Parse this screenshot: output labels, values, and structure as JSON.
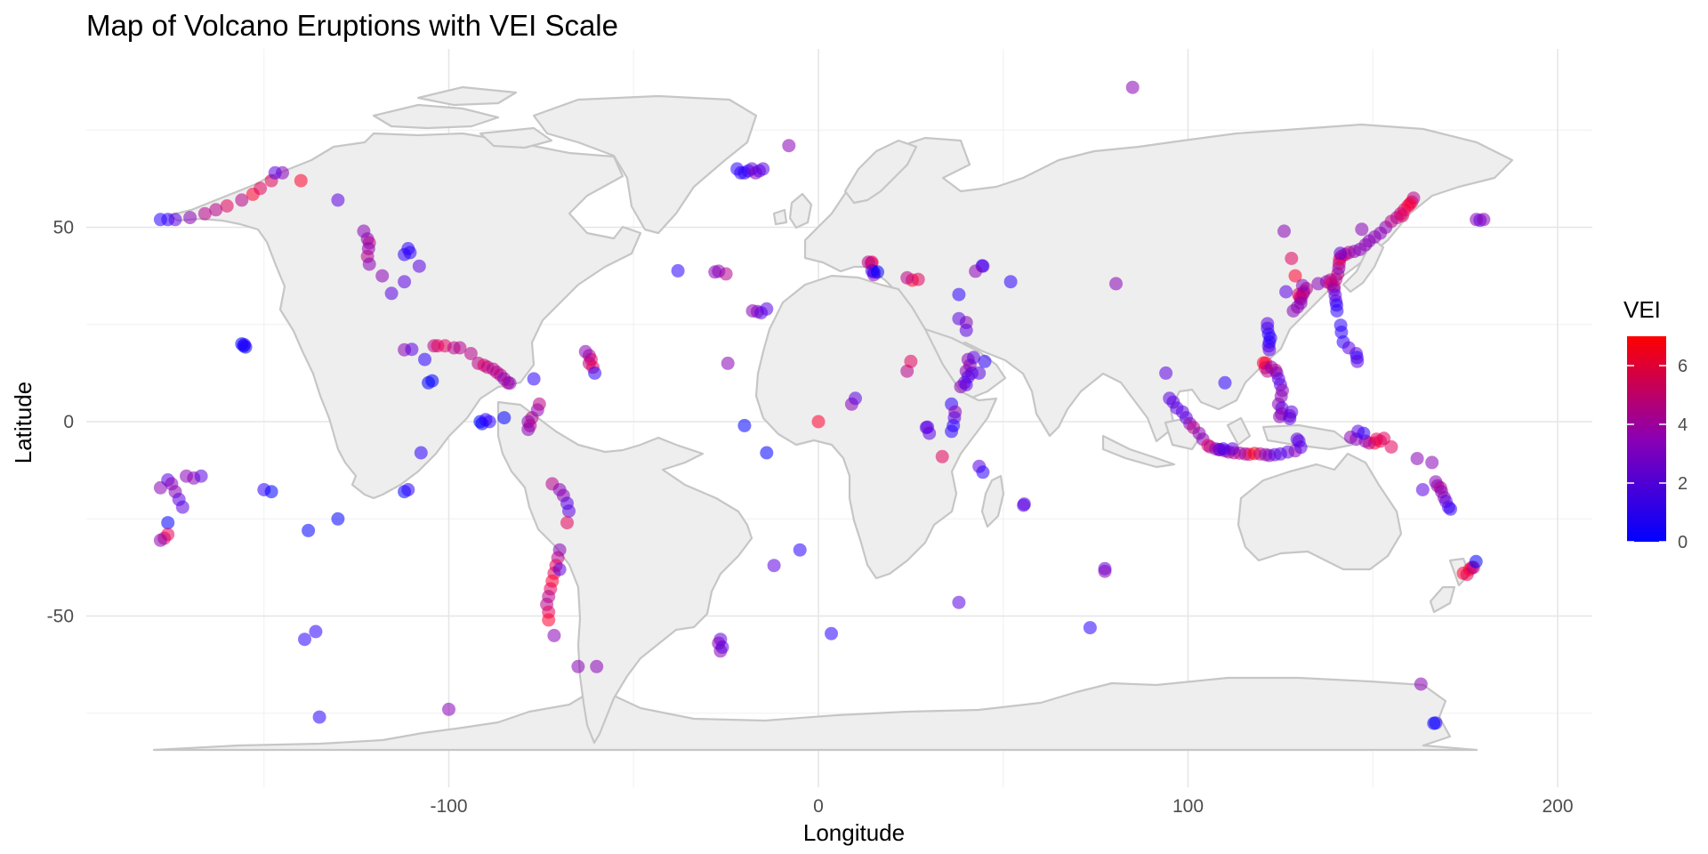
{
  "chart_data": {
    "type": "scatter",
    "title": "Map of Volcano Eruptions with VEI Scale",
    "xlabel": "Longitude",
    "ylabel": "Latitude",
    "xlim": [
      -180,
      205
    ],
    "ylim": [
      -92,
      92
    ],
    "x_ticks": [
      -100,
      0,
      100,
      200
    ],
    "y_ticks": [
      -50,
      0,
      50
    ],
    "grid": true,
    "legend": {
      "title": "VEI",
      "placement": "right",
      "range": [
        0,
        7
      ],
      "ticks": [
        0,
        2,
        4,
        6
      ],
      "color_low": "#0000ff",
      "color_high": "#ff0000"
    },
    "colors": {
      "land_fill": "#eeeeee",
      "land_border": "#c6c6c6",
      "grid": "#e6e6e6"
    },
    "points_lon_lat_vei": [
      [
        -178,
        52,
        1
      ],
      [
        -176,
        52,
        1
      ],
      [
        -174,
        52,
        2
      ],
      [
        -170,
        52.5,
        3
      ],
      [
        -166,
        53.5,
        4
      ],
      [
        -163,
        54.5,
        4
      ],
      [
        -160,
        55.5,
        5
      ],
      [
        -156,
        57,
        4
      ],
      [
        -153,
        58.5,
        6
      ],
      [
        -151,
        60,
        5
      ],
      [
        -148,
        62,
        5
      ],
      [
        -145,
        64,
        3
      ],
      [
        -140,
        62,
        6
      ],
      [
        -130,
        57,
        2
      ],
      [
        -123,
        49,
        3
      ],
      [
        -122,
        47,
        3
      ],
      [
        -121.5,
        46,
        4
      ],
      [
        -121.7,
        44.5,
        3
      ],
      [
        -122,
        42.5,
        4
      ],
      [
        -121.5,
        40.5,
        3
      ],
      [
        -118,
        37.5,
        3
      ],
      [
        -112,
        36,
        2
      ],
      [
        -112,
        43,
        1
      ],
      [
        -111,
        44.5,
        1
      ],
      [
        -110.5,
        43.5,
        1
      ],
      [
        -115.5,
        33,
        2
      ],
      [
        -108,
        40,
        2
      ],
      [
        -104,
        19.5,
        4
      ],
      [
        -103,
        19.5,
        5
      ],
      [
        -101,
        19.5,
        5
      ],
      [
        -98.6,
        19,
        4
      ],
      [
        -97,
        19,
        4
      ],
      [
        -94,
        17.5,
        4
      ],
      [
        -92,
        15,
        4
      ],
      [
        -90.5,
        14.5,
        5
      ],
      [
        -89.5,
        14,
        4
      ],
      [
        -88,
        13.5,
        4
      ],
      [
        -87,
        12.7,
        4
      ],
      [
        -86,
        12,
        4
      ],
      [
        -85,
        11,
        3
      ],
      [
        -84,
        10,
        4
      ],
      [
        -83.5,
        9.9,
        3
      ],
      [
        -77.5,
        1,
        4
      ],
      [
        -78.5,
        0,
        3
      ],
      [
        -78,
        -1,
        4
      ],
      [
        -78.5,
        -2,
        3
      ],
      [
        -76,
        3,
        3
      ],
      [
        -75.5,
        4.5,
        4
      ],
      [
        -72,
        -16,
        4
      ],
      [
        -70,
        -17.5,
        3
      ],
      [
        -69,
        -19,
        3
      ],
      [
        -68,
        -21,
        2
      ],
      [
        -67.5,
        -23,
        2
      ],
      [
        -68,
        -26,
        5
      ],
      [
        -70,
        -33,
        3
      ],
      [
        -70.5,
        -35,
        4
      ],
      [
        -71,
        -37,
        5
      ],
      [
        -71.5,
        -39,
        5
      ],
      [
        -72,
        -41,
        6
      ],
      [
        -72.5,
        -43,
        5
      ],
      [
        -73,
        -45,
        4
      ],
      [
        -73.5,
        -47,
        4
      ],
      [
        -73,
        -49,
        5
      ],
      [
        -73,
        -51,
        6
      ],
      [
        -71.5,
        -55,
        3
      ],
      [
        -70,
        -38,
        2
      ],
      [
        -65,
        -63,
        3
      ],
      [
        -60,
        -63,
        3
      ],
      [
        -62,
        15,
        4
      ],
      [
        -61.5,
        16,
        5
      ],
      [
        -62,
        17,
        4
      ],
      [
        -63,
        18,
        3
      ],
      [
        -61,
        14,
        5
      ],
      [
        -60.5,
        12.5,
        1
      ],
      [
        -155.5,
        19.5,
        0
      ],
      [
        -155,
        19.2,
        0
      ],
      [
        -156,
        20,
        0
      ],
      [
        -155.3,
        19.8,
        1
      ],
      [
        -112,
        18.5,
        3
      ],
      [
        -110,
        18.6,
        2
      ],
      [
        -106.5,
        16,
        1
      ],
      [
        -105.5,
        10,
        0
      ],
      [
        -104.5,
        10.5,
        0
      ],
      [
        -91.5,
        0,
        0
      ],
      [
        -91,
        -0.5,
        0
      ],
      [
        -90,
        0.5,
        1
      ],
      [
        -89,
        0,
        1
      ],
      [
        -107.5,
        -8,
        1
      ],
      [
        -77,
        11,
        1
      ],
      [
        -85,
        1,
        0
      ],
      [
        -150,
        -17.5,
        1
      ],
      [
        -148,
        -18,
        0
      ],
      [
        -138,
        -28,
        0
      ],
      [
        -130,
        -25,
        0
      ],
      [
        -112,
        -18,
        0
      ],
      [
        -111,
        -17.5,
        1
      ],
      [
        -178,
        -17,
        3
      ],
      [
        -176,
        -15,
        2
      ],
      [
        -175,
        -16,
        3
      ],
      [
        -174,
        -18,
        3
      ],
      [
        -173,
        -20,
        2
      ],
      [
        -172,
        -22,
        2
      ],
      [
        -171,
        -14,
        3
      ],
      [
        -169,
        -14.5,
        3
      ],
      [
        -167,
        -14,
        2
      ],
      [
        -176,
        -26,
        0
      ],
      [
        -177,
        -30,
        5
      ],
      [
        -176,
        -29,
        5
      ],
      [
        -178,
        -30.5,
        3
      ],
      [
        -139,
        -56,
        1
      ],
      [
        -136,
        -54,
        1
      ],
      [
        -135,
        -76,
        1
      ],
      [
        -100,
        -74,
        3
      ],
      [
        -147,
        64,
        2
      ],
      [
        -20,
        64,
        1
      ],
      [
        -19,
        64.5,
        1
      ],
      [
        -21,
        64,
        1
      ],
      [
        -18,
        65,
        2
      ],
      [
        -17,
        64,
        3
      ],
      [
        -22,
        65,
        1
      ],
      [
        -16,
        64.5,
        2
      ],
      [
        -15,
        65,
        2
      ],
      [
        -8,
        71,
        3
      ],
      [
        -28,
        38.5,
        3
      ],
      [
        -25,
        38,
        4
      ],
      [
        -27,
        38.7,
        3
      ],
      [
        -17.8,
        28.5,
        3
      ],
      [
        -16.5,
        28.3,
        3
      ],
      [
        -15.5,
        28,
        2
      ],
      [
        -14,
        29,
        2
      ],
      [
        -24.5,
        15,
        3
      ],
      [
        -38,
        38.8,
        1
      ],
      [
        -14,
        -8,
        0
      ],
      [
        -20,
        -1,
        0
      ],
      [
        0,
        0,
        6
      ],
      [
        -12,
        -37,
        2
      ],
      [
        -5,
        -33,
        1
      ],
      [
        3.5,
        -54.5,
        1
      ],
      [
        -26.5,
        -56,
        2
      ],
      [
        -27,
        -57,
        3
      ],
      [
        -26.5,
        -59,
        3
      ],
      [
        -26,
        -58,
        2
      ],
      [
        14.5,
        41,
        5
      ],
      [
        14.3,
        40.8,
        5
      ],
      [
        15,
        38.5,
        1
      ],
      [
        15,
        37.8,
        3
      ],
      [
        14.5,
        38.8,
        1
      ],
      [
        25.4,
        36.4,
        6
      ],
      [
        27,
        36.6,
        5
      ],
      [
        24,
        37,
        4
      ],
      [
        16,
        38.5,
        0
      ],
      [
        13.5,
        41,
        4
      ],
      [
        44.3,
        40.1,
        1
      ],
      [
        44.5,
        40,
        2
      ],
      [
        42.5,
        38.7,
        3
      ],
      [
        52,
        36,
        1
      ],
      [
        38,
        32.7,
        1
      ],
      [
        40,
        25.5,
        3
      ],
      [
        40,
        23.5,
        2
      ],
      [
        38,
        26.5,
        2
      ],
      [
        40.5,
        16,
        3
      ],
      [
        41,
        14.5,
        3
      ],
      [
        40,
        13,
        3
      ],
      [
        41.5,
        12.5,
        2
      ],
      [
        40.5,
        11.5,
        2
      ],
      [
        39.5,
        10,
        2
      ],
      [
        38.5,
        9,
        3
      ],
      [
        40,
        9.5,
        2
      ],
      [
        43.5,
        12.5,
        2
      ],
      [
        45,
        15.5,
        1
      ],
      [
        42,
        16.5,
        2
      ],
      [
        36,
        4.5,
        1
      ],
      [
        37,
        2.5,
        3
      ],
      [
        36.8,
        1,
        2
      ],
      [
        36.5,
        -1,
        1
      ],
      [
        36,
        -2.5,
        1
      ],
      [
        33.5,
        -9,
        5
      ],
      [
        29.2,
        -1.5,
        2
      ],
      [
        29.5,
        -1.4,
        2
      ],
      [
        30,
        -3,
        2
      ],
      [
        24,
        13,
        4
      ],
      [
        25,
        15.5,
        5
      ],
      [
        9,
        4.5,
        3
      ],
      [
        10,
        6,
        2
      ],
      [
        43.5,
        -11.5,
        2
      ],
      [
        44.5,
        -13,
        1
      ],
      [
        55.7,
        -21.2,
        2
      ],
      [
        55.5,
        -21.5,
        2
      ],
      [
        73.5,
        -53,
        1
      ],
      [
        77.5,
        -37.8,
        2
      ],
      [
        77.5,
        -38.5,
        3
      ],
      [
        38,
        -46.5,
        2
      ],
      [
        85,
        86,
        3
      ],
      [
        80.5,
        35.5,
        3
      ],
      [
        94,
        12.5,
        2
      ],
      [
        95,
        6,
        2
      ],
      [
        96,
        5,
        2
      ],
      [
        97,
        3.5,
        2
      ],
      [
        98.5,
        2.5,
        2
      ],
      [
        99.5,
        1,
        2
      ],
      [
        100.5,
        -0.5,
        3
      ],
      [
        101.5,
        -1.5,
        4
      ],
      [
        103,
        -3,
        3
      ],
      [
        104,
        -4.5,
        3
      ],
      [
        105.4,
        -6.1,
        5
      ],
      [
        106,
        -6.5,
        4
      ],
      [
        107.5,
        -7,
        3
      ],
      [
        108.5,
        -7.2,
        4
      ],
      [
        110,
        -7.5,
        4
      ],
      [
        111,
        -7.8,
        3
      ],
      [
        112.5,
        -8,
        4
      ],
      [
        114,
        -8.1,
        4
      ],
      [
        115.5,
        -8.3,
        3
      ],
      [
        116.5,
        -8.4,
        5
      ],
      [
        118,
        -8.2,
        7
      ],
      [
        119.5,
        -8.3,
        4
      ],
      [
        121,
        -8.5,
        3
      ],
      [
        122,
        -8.7,
        3
      ],
      [
        123.5,
        -8.5,
        2
      ],
      [
        125,
        -8.3,
        2
      ],
      [
        127,
        -7.8,
        2
      ],
      [
        129,
        -7.5,
        3
      ],
      [
        130.5,
        -6.6,
        2
      ],
      [
        109.5,
        -7,
        1
      ],
      [
        112,
        -7,
        2
      ],
      [
        121,
        15.1,
        6
      ],
      [
        120.4,
        15.1,
        6
      ],
      [
        120.9,
        13.9,
        5
      ],
      [
        121.5,
        13,
        4
      ],
      [
        122.5,
        14,
        3
      ],
      [
        123.7,
        13.2,
        4
      ],
      [
        124,
        12.5,
        3
      ],
      [
        124.5,
        11,
        2
      ],
      [
        125,
        9.5,
        2
      ],
      [
        125.5,
        8,
        3
      ],
      [
        125.2,
        6.5,
        3
      ],
      [
        124.5,
        4.5,
        3
      ],
      [
        125.4,
        3.5,
        2
      ],
      [
        125.3,
        2,
        3
      ],
      [
        124.8,
        1.3,
        3
      ],
      [
        127.5,
        1.5,
        3
      ],
      [
        127.5,
        0.8,
        2
      ],
      [
        128,
        2.5,
        2
      ],
      [
        129.5,
        -4.5,
        2
      ],
      [
        130,
        -5,
        2
      ],
      [
        122,
        18.5,
        2
      ],
      [
        121.8,
        19.5,
        2
      ],
      [
        122,
        20.5,
        1
      ],
      [
        122.3,
        21.5,
        1
      ],
      [
        121.8,
        22.5,
        1
      ],
      [
        121.5,
        24,
        1
      ],
      [
        121.5,
        25.2,
        2
      ],
      [
        130.6,
        31.6,
        4
      ],
      [
        130.3,
        32,
        4
      ],
      [
        131.1,
        32.9,
        3
      ],
      [
        131.3,
        33.4,
        4
      ],
      [
        129.9,
        32.7,
        5
      ],
      [
        130.5,
        30.5,
        3
      ],
      [
        129.6,
        29.5,
        3
      ],
      [
        128.5,
        28.5,
        3
      ],
      [
        132,
        34.2,
        4
      ],
      [
        135.2,
        35.5,
        3
      ],
      [
        137.5,
        36,
        3
      ],
      [
        138.5,
        36.4,
        4
      ],
      [
        138.7,
        35.4,
        5
      ],
      [
        139.5,
        34.8,
        4
      ],
      [
        139.5,
        34,
        3
      ],
      [
        139.8,
        32.5,
        2
      ],
      [
        140,
        31,
        2
      ],
      [
        140.2,
        30,
        1
      ],
      [
        140.3,
        28.5,
        1
      ],
      [
        141.3,
        24.8,
        1
      ],
      [
        141.5,
        23,
        1
      ],
      [
        142,
        20.5,
        1
      ],
      [
        143.5,
        19,
        2
      ],
      [
        145.5,
        17.5,
        2
      ],
      [
        145.7,
        16.5,
        1
      ],
      [
        145.8,
        15.5,
        2
      ],
      [
        140,
        36.6,
        4
      ],
      [
        140.5,
        38,
        4
      ],
      [
        140.8,
        39.5,
        3
      ],
      [
        140.9,
        40.7,
        4
      ],
      [
        141,
        41.8,
        5
      ],
      [
        141.5,
        42.5,
        5
      ],
      [
        142.5,
        43,
        4
      ],
      [
        143.5,
        43.5,
        4
      ],
      [
        145,
        43.8,
        3
      ],
      [
        146.5,
        44.3,
        3
      ],
      [
        148,
        45.5,
        3
      ],
      [
        149,
        46.5,
        3
      ],
      [
        150.5,
        47.5,
        3
      ],
      [
        152,
        48.5,
        3
      ],
      [
        153.5,
        50,
        3
      ],
      [
        155,
        51.5,
        4
      ],
      [
        156.5,
        52.5,
        4
      ],
      [
        157.5,
        53.5,
        4
      ],
      [
        158.5,
        54.5,
        5
      ],
      [
        159.5,
        55.5,
        5
      ],
      [
        160.5,
        56.5,
        5
      ],
      [
        161,
        57.5,
        4
      ],
      [
        160,
        56,
        6
      ],
      [
        158,
        53,
        5
      ],
      [
        147,
        49.5,
        3
      ],
      [
        141.2,
        43.3,
        2
      ],
      [
        128,
        42,
        5
      ],
      [
        126,
        49,
        3
      ],
      [
        129,
        37.5,
        6
      ],
      [
        131,
        35,
        3
      ],
      [
        126.5,
        33.4,
        2
      ],
      [
        110,
        10,
        1
      ],
      [
        108.5,
        -7.2,
        2
      ],
      [
        163.5,
        -17.5,
        2
      ],
      [
        167,
        -15.5,
        3
      ],
      [
        167.5,
        -16.5,
        3
      ],
      [
        168.3,
        -17,
        4
      ],
      [
        168.6,
        -18,
        3
      ],
      [
        169.3,
        -19.5,
        3
      ],
      [
        169.8,
        -20.5,
        2
      ],
      [
        170.5,
        -22,
        2
      ],
      [
        171,
        -22.5,
        1
      ],
      [
        166,
        -10.5,
        3
      ],
      [
        155,
        -6.5,
        5
      ],
      [
        152,
        -5,
        5
      ],
      [
        150.5,
        -5.5,
        6
      ],
      [
        148,
        -5,
        3
      ],
      [
        145.5,
        -4.5,
        3
      ],
      [
        144,
        -4,
        3
      ],
      [
        146,
        -2.5,
        2
      ],
      [
        147.5,
        -3,
        1
      ],
      [
        149,
        -5.5,
        4
      ],
      [
        151,
        -4.5,
        5
      ],
      [
        153,
        -4.3,
        5
      ],
      [
        162,
        -9.5,
        3
      ],
      [
        178,
        52,
        3
      ],
      [
        179,
        51.8,
        2
      ],
      [
        180,
        52,
        3
      ],
      [
        174.5,
        -39,
        6
      ],
      [
        175.5,
        -39.3,
        5
      ],
      [
        176.2,
        -38,
        6
      ],
      [
        176.8,
        -37.5,
        5
      ],
      [
        177.2,
        -37.5,
        4
      ],
      [
        177.9,
        -36,
        0
      ],
      [
        167,
        -77.5,
        1
      ],
      [
        166.5,
        -77.6,
        0
      ],
      [
        163,
        -67.5,
        3
      ]
    ]
  }
}
